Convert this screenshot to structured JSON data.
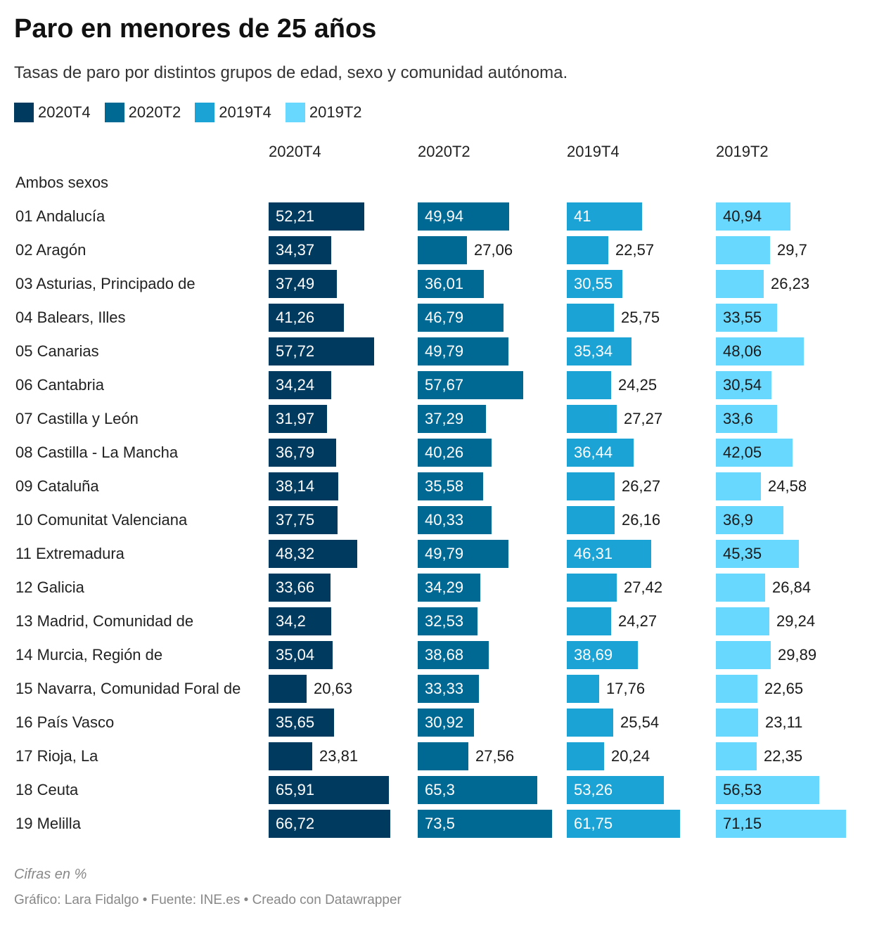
{
  "title": "Paro en menores de 25 años",
  "subtitle": "Tasas de paro por distintos grupos de edad, sexo y comunidad autónoma.",
  "note": "Cifras en %",
  "footer": "Gráfico: Lara Fidalgo • Fuente: INE.es • Creado con Datawrapper",
  "chart_data": {
    "type": "bar",
    "orientation": "horizontal",
    "group_label": "Ambos sexos",
    "categories": [
      "01 Andalucía",
      "02 Aragón",
      "03 Asturias, Principado de",
      "04 Balears, Illes",
      "05 Canarias",
      "06 Cantabria",
      "07 Castilla y León",
      "08 Castilla - La Mancha",
      "09 Cataluña",
      "10 Comunitat Valenciana",
      "11 Extremadura",
      "12 Galicia",
      "13 Madrid, Comunidad de",
      "14 Murcia, Región de",
      "15 Navarra, Comunidad Foral de",
      "16 País Vasco",
      "17 Rioja, La",
      "18 Ceuta",
      "19 Melilla"
    ],
    "series": [
      {
        "name": "2020T4",
        "color": "#003a5e",
        "labels": [
          "52,21",
          "34,37",
          "37,49",
          "41,26",
          "57,72",
          "34,24",
          "31,97",
          "36,79",
          "38,14",
          "37,75",
          "48,32",
          "33,66",
          "34,2",
          "35,04",
          "20,63",
          "35,65",
          "23,81",
          "65,91",
          "66,72"
        ],
        "values": [
          52.21,
          34.37,
          37.49,
          41.26,
          57.72,
          34.24,
          31.97,
          36.79,
          38.14,
          37.75,
          48.32,
          33.66,
          34.2,
          35.04,
          20.63,
          35.65,
          23.81,
          65.91,
          66.72
        ]
      },
      {
        "name": "2020T2",
        "color": "#006993",
        "labels": [
          "49,94",
          "27,06",
          "36,01",
          "46,79",
          "49,79",
          "57,67",
          "37,29",
          "40,26",
          "35,58",
          "40,33",
          "49,79",
          "34,29",
          "32,53",
          "38,68",
          "33,33",
          "30,92",
          "27,56",
          "65,3",
          "73,5"
        ],
        "values": [
          49.94,
          27.06,
          36.01,
          46.79,
          49.79,
          57.67,
          37.29,
          40.26,
          35.58,
          40.33,
          49.79,
          34.29,
          32.53,
          38.68,
          33.33,
          30.92,
          27.56,
          65.3,
          73.5
        ]
      },
      {
        "name": "2019T4",
        "color": "#1aa3d4",
        "labels": [
          "41",
          "22,57",
          "30,55",
          "25,75",
          "35,34",
          "24,25",
          "27,27",
          "36,44",
          "26,27",
          "26,16",
          "46,31",
          "27,42",
          "24,27",
          "38,69",
          "17,76",
          "25,54",
          "20,24",
          "53,26",
          "61,75"
        ],
        "values": [
          41,
          22.57,
          30.55,
          25.75,
          35.34,
          24.25,
          27.27,
          36.44,
          26.27,
          26.16,
          46.31,
          27.42,
          24.27,
          38.69,
          17.76,
          25.54,
          20.24,
          53.26,
          61.75
        ]
      },
      {
        "name": "2019T2",
        "color": "#69d8ff",
        "labels": [
          "40,94",
          "29,7",
          "26,23",
          "33,55",
          "48,06",
          "30,54",
          "33,6",
          "42,05",
          "24,58",
          "36,9",
          "45,35",
          "26,84",
          "29,24",
          "29,89",
          "22,65",
          "23,11",
          "22,35",
          "56,53",
          "71,15"
        ],
        "values": [
          40.94,
          29.7,
          26.23,
          33.55,
          48.06,
          30.54,
          33.6,
          42.05,
          24.58,
          36.9,
          45.35,
          26.84,
          29.24,
          29.89,
          22.65,
          23.11,
          22.35,
          56.53,
          71.15
        ]
      }
    ]
  }
}
